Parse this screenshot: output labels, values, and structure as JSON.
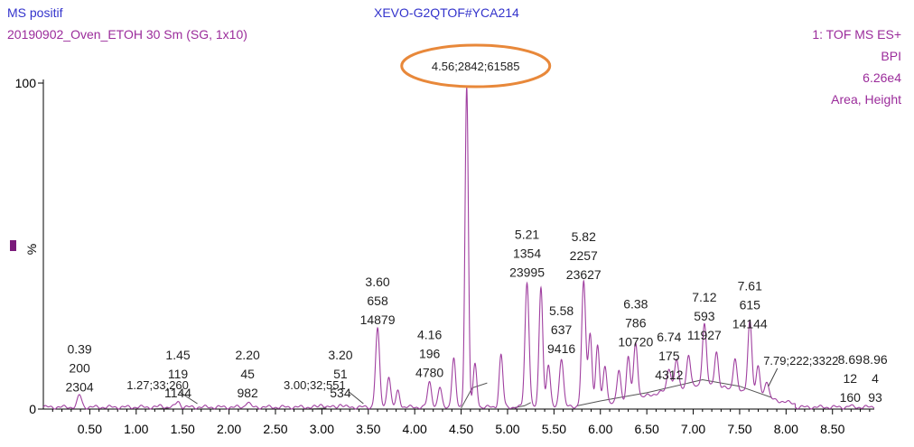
{
  "header": {
    "mode": "MS positif",
    "sample": "20190902_Oven_ETOH 30 Sm (SG, 1x10)",
    "instrument": "XEVO-G2QTOF#YCA214",
    "scan": "1: TOF MS ES+",
    "trace": "BPI",
    "intensity": "6.26e4",
    "labels_mode": "Area, Height"
  },
  "colors": {
    "trace": "#a040a0",
    "baseline": "#555555",
    "highlight": "#e8883a",
    "header_blue": "#3333cc",
    "header_purple": "#9b2c9b",
    "axis": "#000000"
  },
  "chart_data": {
    "type": "line",
    "x_range": [
      0.0,
      8.95
    ],
    "ylim": [
      0,
      100
    ],
    "y_ticks": [
      "0",
      "100"
    ],
    "ylabel": "%",
    "x_ticks": [
      "0.50",
      "1.00",
      "1.50",
      "2.00",
      "2.50",
      "3.00",
      "3.50",
      "4.00",
      "4.50",
      "5.00",
      "5.50",
      "6.00",
      "6.50",
      "7.00",
      "7.50",
      "8.00",
      "8.50"
    ],
    "grid": false,
    "peaks": [
      {
        "rt": 0.39,
        "area": 200,
        "height": 2304,
        "y": 3.7,
        "label": [
          "0.39",
          "200",
          "2304"
        ],
        "inline": false
      },
      {
        "rt": 1.27,
        "area": 33,
        "height": 260,
        "y": 0.4,
        "label": [
          "1.27;33;260"
        ],
        "inline": true
      },
      {
        "rt": 1.45,
        "area": 119,
        "height": 1144,
        "y": 1.8,
        "label": [
          "1.45",
          "119",
          "1144"
        ],
        "inline": false
      },
      {
        "rt": 2.2,
        "area": 45,
        "height": 982,
        "y": 1.6,
        "label": [
          "2.20",
          "45",
          "982"
        ],
        "inline": false
      },
      {
        "rt": 3.0,
        "area": 32,
        "height": 551,
        "y": 0.9,
        "label": [
          "3.00;32;551"
        ],
        "inline": true
      },
      {
        "rt": 3.2,
        "area": 51,
        "height": 534,
        "y": 0.9,
        "label": [
          "3.20",
          "51",
          "534"
        ],
        "inline": false
      },
      {
        "rt": 3.6,
        "area": 658,
        "height": 14879,
        "y": 23.8,
        "label": [
          "3.60",
          "658",
          "14879"
        ],
        "inline": false
      },
      {
        "rt": 4.16,
        "area": 196,
        "height": 4780,
        "y": 7.6,
        "label": [
          "4.16",
          "196",
          "4780"
        ],
        "inline": false
      },
      {
        "rt": 4.56,
        "area": 2842,
        "height": 61585,
        "y": 98.4,
        "label": [
          "4.56;2842;61585"
        ],
        "inline": true,
        "highlighted": true
      },
      {
        "rt": 5.21,
        "area": 1354,
        "height": 23995,
        "y": 38.3,
        "label": [
          "5.21",
          "1354",
          "23995"
        ],
        "inline": false
      },
      {
        "rt": 5.58,
        "area": 637,
        "height": 9416,
        "y": 15.0,
        "label": [
          "5.58",
          "637",
          "9416"
        ],
        "inline": false
      },
      {
        "rt": 5.82,
        "area": 2257,
        "height": 23627,
        "y": 37.7,
        "label": [
          "5.82",
          "2257",
          "23627"
        ],
        "inline": false
      },
      {
        "rt": 6.38,
        "area": 786,
        "height": 10720,
        "y": 17.1,
        "label": [
          "6.38",
          "786",
          "10720"
        ],
        "inline": false
      },
      {
        "rt": 6.74,
        "area": 175,
        "height": 4312,
        "y": 6.9,
        "label": [
          "6.74",
          "175",
          "4312"
        ],
        "inline": false
      },
      {
        "rt": 7.12,
        "area": 593,
        "height": 11927,
        "y": 19.1,
        "label": [
          "7.12",
          "593",
          "11927"
        ],
        "inline": false
      },
      {
        "rt": 7.61,
        "area": 615,
        "height": 14144,
        "y": 22.6,
        "label": [
          "7.61",
          "615",
          "14144"
        ],
        "inline": false
      },
      {
        "rt": 7.79,
        "area": 222,
        "height": 3322,
        "y": 5.3,
        "label": [
          "7.79;222;3322"
        ],
        "inline": true
      },
      {
        "rt": 8.69,
        "area": 12,
        "height": 160,
        "y": 0.3,
        "label": [
          "8.69",
          "12",
          "160"
        ],
        "inline": false
      },
      {
        "rt": 8.96,
        "area": 4,
        "height": 93,
        "y": 0.2,
        "label": [
          "8.96",
          "4",
          "93"
        ],
        "inline": false
      }
    ],
    "unlabeled_peaks": [
      {
        "rt": 3.72,
        "y": 9.5
      },
      {
        "rt": 3.82,
        "y": 5.0
      },
      {
        "rt": 4.27,
        "y": 6.0
      },
      {
        "rt": 4.42,
        "y": 15.0
      },
      {
        "rt": 4.65,
        "y": 13.0
      },
      {
        "rt": 4.93,
        "y": 16.0
      },
      {
        "rt": 5.36,
        "y": 37.0
      },
      {
        "rt": 5.44,
        "y": 13.0
      },
      {
        "rt": 5.89,
        "y": 22.0
      },
      {
        "rt": 5.97,
        "y": 18.0
      },
      {
        "rt": 6.05,
        "y": 12.0
      },
      {
        "rt": 6.2,
        "y": 10.0
      },
      {
        "rt": 6.3,
        "y": 13.0
      },
      {
        "rt": 6.82,
        "y": 9.0
      },
      {
        "rt": 6.95,
        "y": 10.0
      },
      {
        "rt": 7.25,
        "y": 11.0
      },
      {
        "rt": 7.45,
        "y": 10.0
      },
      {
        "rt": 7.7,
        "y": 9.0
      }
    ]
  }
}
